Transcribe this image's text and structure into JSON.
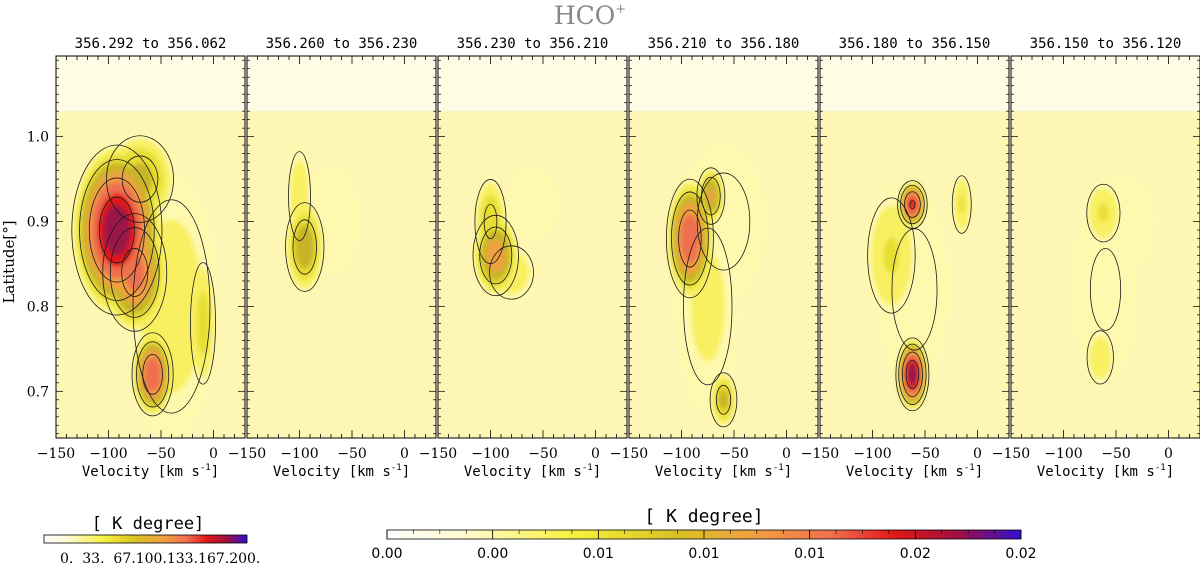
{
  "chart_data": {
    "type": "heatmap",
    "title": "HCO",
    "title_superscript": "+",
    "ylabel": "Latitude[°]",
    "ylim": [
      0.645,
      1.095
    ],
    "xlim": [
      -150,
      30
    ],
    "yticks": [
      "0.7",
      "0.8",
      "0.9",
      "1.0"
    ],
    "ytick_values": [
      0.7,
      0.8,
      0.9,
      1.0
    ],
    "xtick_values": [
      -150,
      -100,
      -50,
      0
    ],
    "panels": [
      {
        "label": "356.292  to  356.062",
        "xticks": [
          "−150",
          "−100",
          "−50",
          "0"
        ],
        "xlabel": "Velocity [km s",
        "xlabel_sup": "-1",
        "xlabel_end": "]",
        "blobs": [
          [
            -92,
            0.89,
            30,
            0.07,
            1.0
          ],
          [
            -75,
            0.84,
            22,
            0.05,
            0.8
          ],
          [
            -58,
            0.72,
            14,
            0.035,
            0.85
          ],
          [
            -70,
            0.95,
            25,
            0.04,
            0.55
          ],
          [
            -10,
            0.78,
            10,
            0.06,
            0.45
          ],
          [
            -40,
            0.8,
            35,
            0.12,
            0.35
          ]
        ]
      },
      {
        "label": "356.260  to  356.230",
        "xticks": [
          "−150",
          "−100",
          "−50",
          "0"
        ],
        "xlabel": "Velocity [km s",
        "xlabel_sup": "-1",
        "xlabel_end": "]",
        "blobs": [
          [
            -95,
            0.87,
            14,
            0.04,
            0.6
          ],
          [
            -100,
            0.93,
            10,
            0.05,
            0.35
          ],
          [
            -70,
            0.9,
            30,
            0.07,
            0.18
          ]
        ]
      },
      {
        "label": "356.230  to  356.210",
        "xticks": [
          "−150",
          "−100",
          "−50",
          "0"
        ],
        "xlabel": "Velocity [km s",
        "xlabel_sup": "-1",
        "xlabel_end": "]",
        "blobs": [
          [
            -95,
            0.86,
            16,
            0.035,
            0.7
          ],
          [
            -100,
            0.9,
            12,
            0.04,
            0.5
          ],
          [
            -80,
            0.84,
            20,
            0.03,
            0.35
          ],
          [
            -60,
            0.92,
            35,
            0.06,
            0.15
          ]
        ]
      },
      {
        "label": "356.210  to  356.180",
        "xticks": [
          "−150",
          "−100",
          "−50",
          "0"
        ],
        "xlabel": "Velocity [km s",
        "xlabel_sup": "-1",
        "xlabel_end": "]",
        "blobs": [
          [
            -92,
            0.88,
            16,
            0.05,
            0.85
          ],
          [
            -72,
            0.93,
            10,
            0.025,
            0.65
          ],
          [
            -60,
            0.69,
            10,
            0.025,
            0.55
          ],
          [
            -75,
            0.8,
            25,
            0.1,
            0.3
          ],
          [
            -60,
            0.9,
            35,
            0.08,
            0.25
          ]
        ]
      },
      {
        "label": "356.180  to  356.150",
        "xticks": [
          "−150",
          "−100",
          "−50",
          "0"
        ],
        "xlabel": "Velocity [km s",
        "xlabel_sup": "-1",
        "xlabel_end": "]",
        "blobs": [
          [
            -62,
            0.92,
            10,
            0.02,
            0.9
          ],
          [
            -62,
            0.72,
            11,
            0.03,
            1.0
          ],
          [
            -82,
            0.86,
            20,
            0.06,
            0.4
          ],
          [
            -15,
            0.92,
            8,
            0.03,
            0.4
          ],
          [
            -60,
            0.82,
            30,
            0.1,
            0.25
          ]
        ]
      },
      {
        "label": "356.150  to  356.120",
        "xticks": [
          "−150",
          "−100",
          "−50",
          "0"
        ],
        "xlabel": "Velocity [km s",
        "xlabel_sup": "-1",
        "xlabel_end": "]",
        "blobs": [
          [
            -62,
            0.91,
            14,
            0.03,
            0.4
          ],
          [
            -65,
            0.74,
            12,
            0.03,
            0.35
          ],
          [
            -60,
            0.82,
            30,
            0.1,
            0.22
          ],
          [
            -40,
            0.9,
            30,
            0.06,
            0.18
          ]
        ]
      }
    ],
    "colorbar_left": {
      "label": "[ K degree]",
      "ticks": "0.  33.  67.100.133.167.200."
    },
    "colorbar_right": {
      "label": "[ K degree]",
      "ticks": [
        "0.00",
        "0.00",
        "0.01",
        "0.01",
        "0.01",
        "0.02",
        "0.02"
      ]
    }
  }
}
